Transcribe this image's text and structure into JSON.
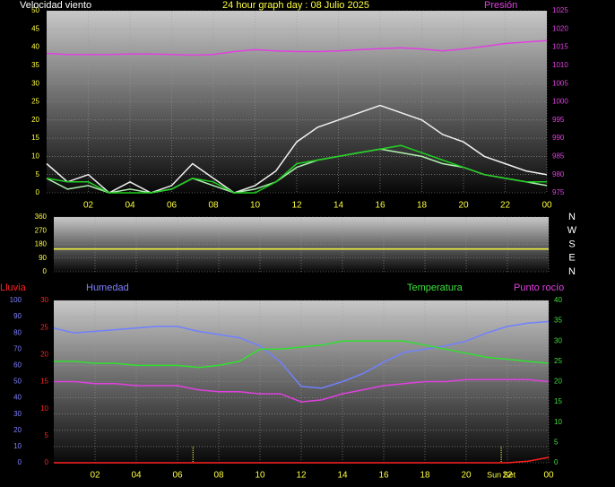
{
  "chart_data": [
    {
      "type": "line",
      "title": "24 hour graph day : 08 Julio 2025",
      "y_label": "Velocidad viento",
      "y_label_color": "#ffffff",
      "y_tick_color": "#ffff40",
      "y2_label": "Presión",
      "y2_label_color": "#e040e0",
      "y2_tick_color": "#e040e0",
      "x": [
        0,
        1,
        2,
        3,
        4,
        5,
        6,
        7,
        8,
        9,
        10,
        11,
        12,
        13,
        14,
        15,
        16,
        17,
        18,
        19,
        20,
        21,
        22,
        23,
        24
      ],
      "xlim": [
        0,
        24
      ],
      "xticks": [
        {
          "value": 2,
          "label": "02"
        },
        {
          "value": 4,
          "label": "04"
        },
        {
          "value": 6,
          "label": "06"
        },
        {
          "value": 8,
          "label": "08"
        },
        10,
        12,
        14,
        16,
        18,
        20,
        22,
        {
          "value": 24,
          "label": "00"
        }
      ],
      "ylim": [
        0,
        50
      ],
      "yticks": [
        0,
        5,
        10,
        15,
        20,
        25,
        30,
        35,
        40,
        45,
        50
      ],
      "y2lim": [
        975,
        1025
      ],
      "y2ticks": [
        975,
        980,
        985,
        990,
        995,
        1000,
        1005,
        1010,
        1015,
        1020,
        1025
      ],
      "grid": true,
      "series": [
        {
          "color": "#f0f0f0",
          "axis": "y",
          "values": [
            8,
            3,
            5,
            0,
            3,
            0,
            2,
            8,
            4,
            0,
            2,
            6,
            14,
            18,
            20,
            22,
            24,
            22,
            20,
            16,
            14,
            10,
            8,
            6,
            5
          ]
        },
        {
          "color": "#b0f0b0",
          "axis": "y",
          "values": [
            4,
            1,
            2,
            0,
            1,
            0,
            1,
            4,
            2,
            0,
            1,
            3,
            7,
            9,
            10,
            11,
            12,
            11,
            10,
            8,
            7,
            5,
            4,
            3,
            2
          ]
        },
        {
          "color": "#20d020",
          "axis": "y",
          "values": [
            4,
            3,
            3,
            0,
            0,
            0,
            1,
            4,
            3,
            0,
            0,
            3,
            8,
            9,
            10,
            11,
            12,
            13,
            11,
            9,
            7,
            5,
            4,
            3,
            3
          ]
        },
        {
          "color": "#e040e0",
          "axis": "y2",
          "values": [
            1013.3,
            1013,
            1013,
            1013,
            1013.1,
            1013.1,
            1013,
            1012.8,
            1013,
            1013.8,
            1014.3,
            1014,
            1013.8,
            1013.8,
            1014,
            1014.3,
            1014.6,
            1014.8,
            1014.5,
            1014,
            1014.5,
            1015.2,
            1016,
            1016.4,
            1016.8
          ]
        }
      ]
    },
    {
      "type": "line",
      "y_tick_color": "#ffff40",
      "x": [
        0,
        24
      ],
      "xlim": [
        0,
        24
      ],
      "xticks": [
        2,
        4,
        6,
        8,
        10,
        12,
        14,
        16,
        18,
        20,
        22,
        24
      ],
      "ylim": [
        0,
        360
      ],
      "yticks": [
        0,
        90,
        180,
        270,
        360
      ],
      "compass": [
        "N",
        "W",
        "S",
        "E",
        "N"
      ],
      "compass_color": "#ffffff",
      "grid": true,
      "series": [
        {
          "color": "#ffff40",
          "axis": "y",
          "values": [
            150,
            150
          ]
        }
      ]
    },
    {
      "type": "line",
      "y_label": "Humedad",
      "y_label_color": "#8080ff",
      "y_tick_color": "#8080ff",
      "y3_label": "Lluvia",
      "y3_label_color": "#ff2020",
      "y3_tick_color": "#ff2020",
      "y2_label": "Temperatura",
      "y2_label_color": "#40e040",
      "y2_tick_color": "#40e040",
      "y4_label": "Punto rocío",
      "y4_label_color": "#e040e0",
      "x": [
        0,
        1,
        2,
        3,
        4,
        5,
        6,
        7,
        8,
        9,
        10,
        11,
        12,
        13,
        14,
        15,
        16,
        17,
        18,
        19,
        20,
        21,
        22,
        23,
        24
      ],
      "xlim": [
        0,
        24
      ],
      "xticks": [
        {
          "value": 2,
          "label": "02"
        },
        {
          "value": 4,
          "label": "04"
        },
        {
          "value": 6,
          "label": "06"
        },
        {
          "value": 8,
          "label": "08"
        },
        10,
        12,
        14,
        16,
        18,
        20,
        22,
        {
          "value": 24,
          "label": "00"
        }
      ],
      "ylim": [
        0,
        100
      ],
      "yticks": [
        0,
        10,
        20,
        30,
        40,
        50,
        60,
        70,
        80,
        90,
        100
      ],
      "y3lim": [
        0,
        30
      ],
      "y3ticks": [
        0,
        5,
        10,
        15,
        20,
        25,
        30
      ],
      "y2lim": [
        0,
        40
      ],
      "y2ticks": [
        0,
        5,
        10,
        15,
        20,
        25,
        30,
        35,
        40
      ],
      "grid": true,
      "markers": [
        {
          "x": 6.75
        },
        {
          "x": 21.7,
          "label": "Sun Set"
        }
      ],
      "marker_color": "#ffff40",
      "series": [
        {
          "color": "#7080ff",
          "axis": "y",
          "values": [
            83,
            80,
            81,
            82,
            83,
            84,
            84,
            81,
            79,
            77,
            72,
            62,
            47,
            46,
            50,
            55,
            62,
            68,
            70,
            72,
            75,
            80,
            84,
            86,
            87
          ]
        },
        {
          "color": "#30e030",
          "axis": "y2",
          "values": [
            25,
            25,
            24.5,
            24.5,
            24,
            24,
            24,
            23.5,
            24,
            25,
            28,
            28,
            28.5,
            29,
            30,
            30,
            30,
            30,
            29,
            28,
            27,
            26,
            25.5,
            25,
            24.5
          ]
        },
        {
          "color": "#e040e0",
          "axis": "y2",
          "values": [
            20,
            20,
            19.5,
            19.5,
            19,
            19,
            19,
            18,
            17.5,
            17.5,
            17,
            17,
            15,
            15.5,
            17,
            18,
            19,
            19.5,
            20,
            20,
            20.5,
            20.5,
            20.5,
            20.5,
            20
          ]
        },
        {
          "color": "#ff2020",
          "axis": "y3",
          "values": [
            0,
            0,
            0,
            0,
            0,
            0,
            0,
            0,
            0,
            0,
            0,
            0,
            0,
            0,
            0,
            0,
            0,
            0,
            0,
            0,
            0,
            0,
            0,
            0.3,
            1
          ]
        }
      ]
    }
  ]
}
